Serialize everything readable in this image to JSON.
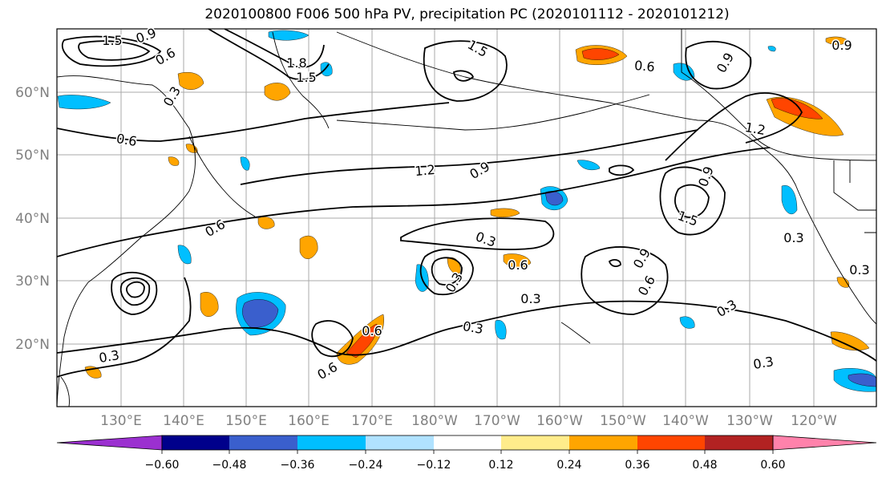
{
  "title": "2020100800 F006 500 hPa PV, precipitation PC (2020101112 - 2020101212)",
  "map": {
    "lat_labels": [
      "60°N",
      "50°N",
      "40°N",
      "30°N",
      "20°N"
    ],
    "lon_labels": [
      "130°E",
      "140°E",
      "150°E",
      "160°E",
      "170°E",
      "180°W",
      "170°W",
      "160°W",
      "150°W",
      "140°W",
      "130°W",
      "120°W"
    ],
    "contour_labels": [
      {
        "id": "c1",
        "text": "1.5"
      },
      {
        "id": "c2",
        "text": "0.9"
      },
      {
        "id": "c3",
        "text": "0.6"
      },
      {
        "id": "c4",
        "text": "1.8"
      },
      {
        "id": "c5",
        "text": "1.5"
      },
      {
        "id": "c6",
        "text": "0.3"
      },
      {
        "id": "c7",
        "text": "1.2"
      },
      {
        "id": "c8",
        "text": "1.5"
      },
      {
        "id": "c9",
        "text": "0.6"
      },
      {
        "id": "c10",
        "text": "0.9"
      },
      {
        "id": "c11",
        "text": "0.9"
      },
      {
        "id": "c12",
        "text": "0.6"
      },
      {
        "id": "c13",
        "text": "1.2"
      },
      {
        "id": "c14",
        "text": "0.9"
      },
      {
        "id": "c15",
        "text": "0.9"
      },
      {
        "id": "c16",
        "text": "1.5"
      },
      {
        "id": "c17",
        "text": "0.6"
      },
      {
        "id": "c18",
        "text": "0.3"
      },
      {
        "id": "c19",
        "text": "0.3"
      },
      {
        "id": "c20",
        "text": "0.6"
      },
      {
        "id": "c21",
        "text": "0.9"
      },
      {
        "id": "c22",
        "text": "0.6"
      },
      {
        "id": "c23",
        "text": "0.3"
      },
      {
        "id": "c24",
        "text": "0.3"
      },
      {
        "id": "c25",
        "text": "0.3"
      },
      {
        "id": "c26",
        "text": "0.6"
      },
      {
        "id": "c27",
        "text": "0.3"
      },
      {
        "id": "c28",
        "text": "0.6"
      },
      {
        "id": "c29",
        "text": "0.3"
      },
      {
        "id": "c30",
        "text": "0.3"
      },
      {
        "id": "c31",
        "text": "0.3"
      }
    ]
  },
  "colorbar": {
    "tick_labels": [
      "−0.60",
      "−0.48",
      "−0.36",
      "−0.24",
      "−0.12",
      "0.12",
      "0.24",
      "0.36",
      "0.48",
      "0.60"
    ],
    "colors": [
      "#9b30d0",
      "#00008b",
      "#3a5fcd",
      "#00bfff",
      "#b0e2ff",
      "#ffffff",
      "#ffec8b",
      "#ffa500",
      "#ff4500",
      "#b22222",
      "#ff82ab"
    ]
  },
  "palette": {
    "purple": "#9b30d0",
    "navy": "#00008b",
    "blue": "#3a5fcd",
    "sky": "#00bfff",
    "light_blue": "#b0e2ff",
    "yellow": "#ffec8b",
    "orange": "#ffa500",
    "red_orange": "#ff4500",
    "dark_red": "#b22222"
  }
}
